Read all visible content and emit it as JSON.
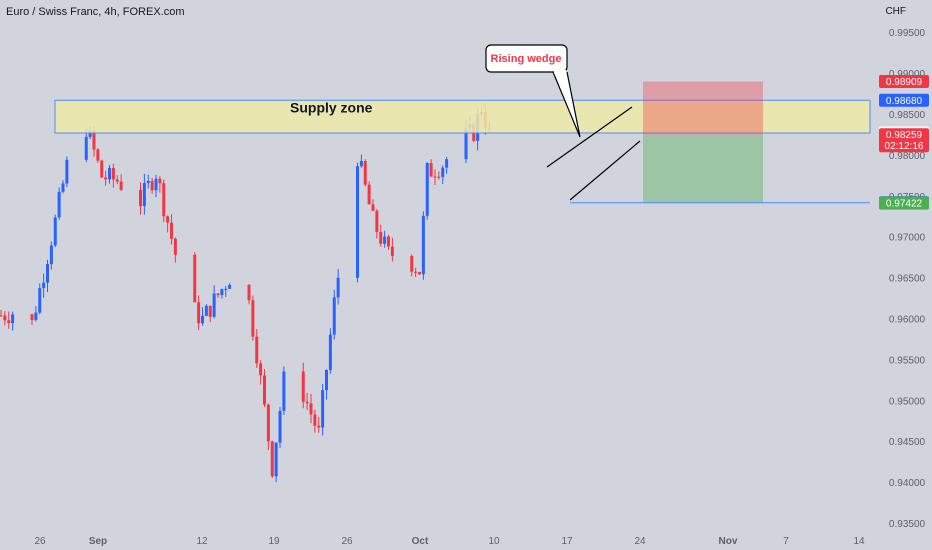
{
  "header": {
    "symbol_title": "Euro / Swiss Franc, 4h, FOREX.com",
    "currency": "CHF"
  },
  "annotations": {
    "supply_zone": "Supply zone",
    "rising_wedge": "Rising wedge"
  },
  "price_tags": [
    {
      "value": "0.98909",
      "role": "stop-loss",
      "color": "#f23645"
    },
    {
      "value": "0.98680",
      "role": "supply-zone-top",
      "color": "#2962ff"
    },
    {
      "value": "0.98280",
      "role": "supply-zone-bottom",
      "color": "#ffffff"
    },
    {
      "value": "0.98259",
      "role": "last-price",
      "color": "#f23645",
      "countdown": "02:12:16"
    },
    {
      "value": "0.97428",
      "role": "support-line",
      "color": "#2962ff"
    },
    {
      "value": "0.97422",
      "role": "take-profit",
      "color": "#4caf50"
    }
  ],
  "colors": {
    "up": "#2962ff",
    "down": "#f23645",
    "zone": "#efe9a8",
    "zone_border": "#4a8cff",
    "profit": "#4caf50",
    "loss": "#f23645"
  },
  "chart_data": {
    "type": "candlestick",
    "title": "Euro / Swiss Franc, 4h, FOREX.com",
    "y_unit": "CHF",
    "ylim": [
      0.9325,
      1.0005
    ],
    "y_ticks": [
      "0.99500",
      "0.99000",
      "0.98500",
      "0.98000",
      "0.97500",
      "0.97000",
      "0.96500",
      "0.96000",
      "0.95500",
      "0.95000",
      "0.94500",
      "0.94000",
      "0.93500"
    ],
    "x_ticks": [
      "26",
      "Sep",
      "12",
      "19",
      "26",
      "Oct",
      "10",
      "17",
      "24",
      "Nov",
      "7",
      "14"
    ],
    "supply_zone": [
      0.9828,
      0.9868
    ],
    "support_line": 0.97428,
    "trade": {
      "entry": 0.98259,
      "stop": 0.98909,
      "target": 0.97422
    },
    "anchors": [
      {
        "x": "Aug 22",
        "close": 0.9605
      },
      {
        "x": "Aug 24",
        "close": 0.961
      },
      {
        "x": "Aug 26",
        "close": 0.9595
      },
      {
        "x": "Aug 29",
        "close": 0.972
      },
      {
        "x": "Aug 31",
        "close": 0.981
      },
      {
        "x": "Sep 2",
        "close": 0.9835
      },
      {
        "x": "Sep 4",
        "close": 0.9775
      },
      {
        "x": "Sep 6",
        "close": 0.977
      },
      {
        "x": "Sep 9",
        "close": 0.9745
      },
      {
        "x": "Sep 11",
        "close": 0.978
      },
      {
        "x": "Sep 13",
        "close": 0.97
      },
      {
        "x": "Sep 15",
        "close": 0.962
      },
      {
        "x": "Sep 17",
        "close": 0.96
      },
      {
        "x": "Sep 19",
        "close": 0.963
      },
      {
        "x": "Sep 21",
        "close": 0.966
      },
      {
        "x": "Sep 22",
        "close": 0.968
      },
      {
        "x": "Sep 24",
        "close": 0.956
      },
      {
        "x": "Sep 26",
        "close": 0.942
      },
      {
        "x": "Sep 28",
        "close": 0.956
      },
      {
        "x": "Sep 30",
        "close": 0.951
      },
      {
        "x": "Oct 2",
        "close": 0.946
      },
      {
        "x": "Oct 4",
        "close": 0.962
      },
      {
        "x": "Oct 6",
        "close": 0.975
      },
      {
        "x": "Oct 7",
        "close": 0.98
      },
      {
        "x": "Oct 9",
        "close": 0.972
      },
      {
        "x": "Oct 11",
        "close": 0.968
      },
      {
        "x": "Oct 13",
        "close": 0.968
      },
      {
        "x": "Oct 15",
        "close": 0.966
      },
      {
        "x": "Oct 16",
        "close": 0.978
      },
      {
        "x": "Oct 18",
        "close": 0.979
      },
      {
        "x": "Oct 20",
        "close": 0.9815
      },
      {
        "x": "Oct 22",
        "close": 0.983
      },
      {
        "x": "Oct 23",
        "close": 0.986
      },
      {
        "x": "Oct 24",
        "close": 0.98259
      }
    ]
  }
}
